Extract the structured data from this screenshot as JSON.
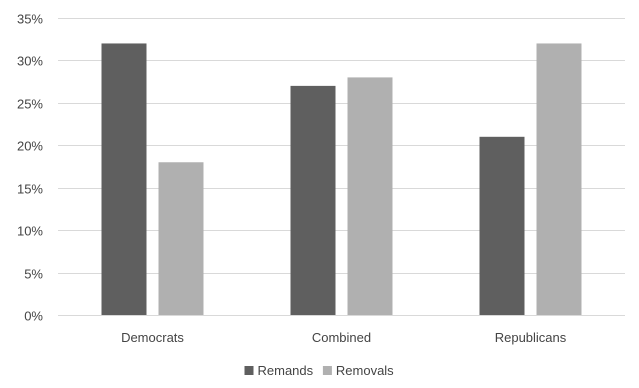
{
  "chart_data": {
    "type": "bar",
    "title": "",
    "xlabel": "",
    "ylabel": "",
    "categories": [
      "Democrats",
      "Combined",
      "Republicans"
    ],
    "series": [
      {
        "name": "Remands",
        "color": "#5f5f5f",
        "values": [
          32,
          27,
          21
        ]
      },
      {
        "name": "Removals",
        "color": "#b0b0b0",
        "values": [
          18,
          28,
          32
        ]
      }
    ],
    "ylim": [
      0,
      35
    ],
    "y_ticks": [
      0,
      5,
      10,
      15,
      20,
      25,
      30,
      35
    ],
    "y_tick_labels": [
      "0%",
      "5%",
      "10%",
      "15%",
      "20%",
      "25%",
      "30%",
      "35%"
    ],
    "grid": true,
    "legend_position": "bottom"
  }
}
